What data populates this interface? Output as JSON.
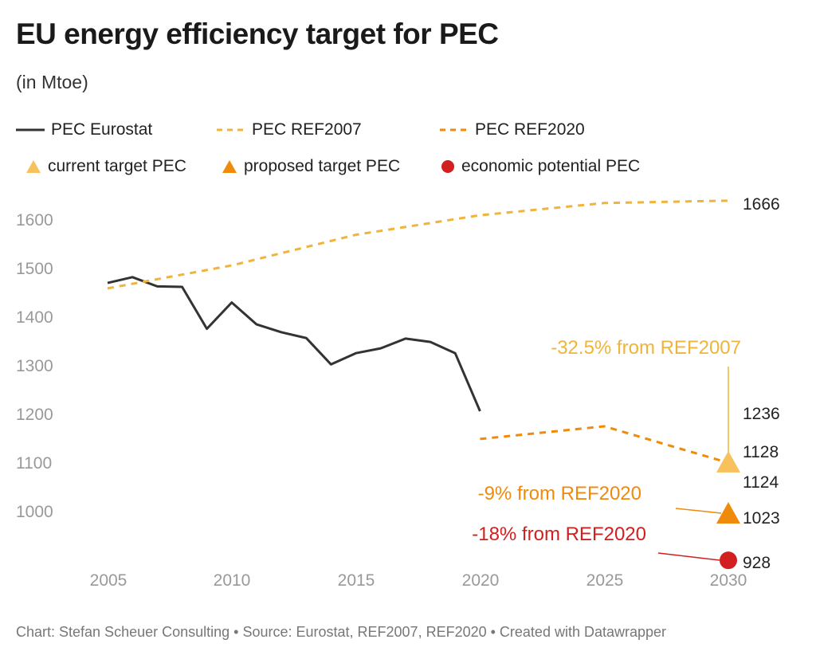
{
  "title": "EU energy efficiency target for PEC",
  "subtitle": "(in Mtoe)",
  "legend": [
    {
      "label": "PEC Eurostat",
      "symbol": "line-solid",
      "color": "#333333"
    },
    {
      "label": "PEC REF2007",
      "symbol": "line-dashed",
      "color": "#f0b43c"
    },
    {
      "label": "PEC REF2020",
      "symbol": "line-dashed",
      "color": "#f08a0a"
    },
    {
      "label": "current target PEC",
      "symbol": "triangle",
      "color": "#f7c15d"
    },
    {
      "label": "proposed target PEC",
      "symbol": "triangle",
      "color": "#f08a0a"
    },
    {
      "label": "economic potential PEC",
      "symbol": "circle",
      "color": "#d21f1f"
    }
  ],
  "footer": "Chart: Stefan Scheuer Consulting • Source: Eurostat, REF2007, REF2020 • Created with Datawrapper",
  "chart_data": {
    "type": "line",
    "xlabel": "",
    "ylabel": "",
    "xlim": [
      2005,
      2030
    ],
    "ylim": [
      900,
      1680
    ],
    "x_ticks": [
      "2005",
      "2010",
      "2015",
      "2020",
      "2025",
      "2030"
    ],
    "y_ticks": [
      "1000",
      "1100",
      "1200",
      "1300",
      "1400",
      "1500",
      "1600"
    ],
    "grid": false,
    "legend_position": "top",
    "series": [
      {
        "name": "PEC Eurostat",
        "color": "#333333",
        "style": "solid",
        "x": [
          2005,
          2006,
          2007,
          2008,
          2009,
          2010,
          2011,
          2012,
          2013,
          2014,
          2015,
          2016,
          2017,
          2018,
          2019,
          2020
        ],
        "y": [
          1469,
          1481,
          1462,
          1461,
          1375,
          1429,
          1384,
          1368,
          1356,
          1302,
          1325,
          1335,
          1355,
          1348,
          1325,
          1206
        ]
      },
      {
        "name": "PEC REF2007",
        "color": "#f0b43c",
        "style": "dashed",
        "x": [
          2005,
          2010,
          2015,
          2020,
          2025,
          2030
        ],
        "y": [
          1458,
          1505,
          1568,
          1608,
          1633,
          1638
        ]
      },
      {
        "name": "PEC REF2020",
        "color": "#f08a0a",
        "style": "dashed",
        "x": [
          2020,
          2025,
          2030
        ],
        "y": [
          1149,
          1175,
          1100
        ]
      }
    ],
    "markers": [
      {
        "name": "current target PEC",
        "shape": "triangle",
        "color": "#f7c15d",
        "x": 2030,
        "y": 1100
      },
      {
        "name": "proposed target PEC",
        "shape": "triangle",
        "color": "#f08a0a",
        "x": 2030,
        "y": 995
      },
      {
        "name": "economic potential PEC",
        "shape": "circle",
        "color": "#d21f1f",
        "x": 2030,
        "y": 900
      }
    ],
    "value_labels": [
      "1666",
      "1236",
      "1128",
      "1124",
      "1023",
      "928"
    ],
    "annotations": [
      {
        "text": "-32.5% from REF2007",
        "color": "#f0b43c"
      },
      {
        "text": "-9% from REF2020",
        "color": "#f08a0a"
      },
      {
        "text": "-18% from REF2020",
        "color": "#d21f1f"
      }
    ]
  }
}
